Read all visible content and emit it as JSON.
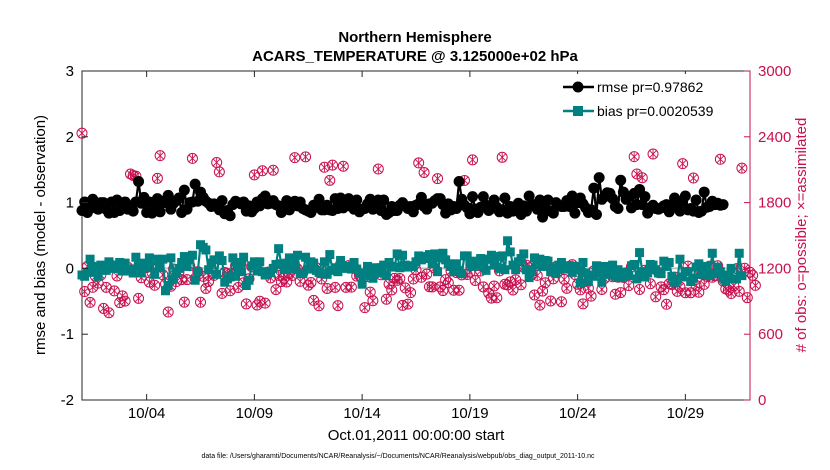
{
  "chart_data": {
    "type": "line",
    "title": "Northern Hemisphere",
    "subtitle": "ACARS_TEMPERATURE @ 3.125000e+02 hPa",
    "xlabel": "Oct.01,2011 00:00:00 start",
    "ylabel_left": "rmse and bias (model - observation)",
    "ylabel_right": "# of obs: o=possible; ×=assimilated",
    "ylim_left": [
      -2,
      3
    ],
    "ylim_right": [
      0,
      3000
    ],
    "left_ticks": [
      "-2",
      "-1",
      "0",
      "1",
      "2",
      "3"
    ],
    "right_ticks": [
      "0",
      "600",
      "1200",
      "1800",
      "2400",
      "3000"
    ],
    "x_range_days": [
      1.0,
      32.0
    ],
    "x_ticks": [
      {
        "day": 4,
        "label": "10/04"
      },
      {
        "day": 9,
        "label": "10/09"
      },
      {
        "day": 14,
        "label": "10/14"
      },
      {
        "day": 19,
        "label": "10/19"
      },
      {
        "day": 24,
        "label": "10/24"
      },
      {
        "day": 29,
        "label": "10/29"
      }
    ],
    "legend": [
      {
        "name": "rmse pr=0.97862",
        "color": "#000000",
        "marker": "circle"
      },
      {
        "name": "bias pr=0.0020539",
        "color": "#008080",
        "marker": "square"
      }
    ],
    "legend_location": "top-right",
    "x_step_days": 0.125,
    "series": [
      {
        "name": "rmse",
        "color": "#000000",
        "marker": "circle",
        "values": [
          0.88,
          1.01,
          0.85,
          0.97,
          1.05,
          0.92,
          0.9,
          1.0,
          1.0,
          0.9,
          0.84,
          1.01,
          0.85,
          1.04,
          0.88,
          0.94,
          1.01,
          0.9,
          0.95,
          0.87,
          1.01,
          1.32,
          0.99,
          1.08,
          0.85,
          1.01,
          0.84,
          0.94,
          1.06,
          0.86,
          1.02,
          1.0,
          1.11,
          0.9,
          0.99,
          1.03,
          1.07,
          0.85,
          1.19,
          0.9,
          1.0,
          1.01,
          1.28,
          1.02,
          1.16,
          1.08,
          1.02,
          0.99,
          0.94,
          0.98,
          0.94,
          0.89,
          1.03,
          0.83,
          0.88,
          0.8,
          0.97,
          1.02,
          1.0,
          0.98,
          1.01,
          0.87,
          0.95,
          0.86,
          0.91,
          1.01,
          0.95,
          1.06,
          1.1,
          0.98,
          0.99,
          1.03,
          0.97,
          0.95,
          0.85,
          0.91,
          1.03,
          0.89,
          0.97,
          1.02,
          0.95,
          1.01,
          0.91,
          0.89,
          0.87,
          0.85,
          0.96,
          0.93,
          1.05,
          0.89,
          0.89,
          0.96,
          0.89,
          0.88,
          1.06,
          0.91,
          1.07,
          0.92,
          0.95,
          1.06,
          0.94,
          0.9,
          1.04,
          0.86,
          0.9,
          0.91,
          0.98,
          1.05,
          0.9,
          0.94,
          1.04,
          0.88,
          1.04,
          0.82,
          0.85,
          0.94,
          0.88,
          0.88,
          0.96,
          1.0,
          0.95,
          0.91,
          0.94,
          0.86,
          0.96,
          0.98,
          1.08,
          0.94,
          0.9,
          0.98,
          0.99,
          1.03,
          1.06,
          1.06,
          0.97,
          0.84,
          0.98,
          0.89,
          0.94,
          0.91,
          1.32,
          1.05,
          0.96,
          0.92,
          0.83,
          1.09,
          0.9,
          0.85,
          0.93,
          1.09,
          0.96,
          0.88,
          0.91,
          1.04,
          0.93,
          0.86,
          0.89,
          1.07,
          0.84,
          0.94,
          0.87,
          0.88,
          0.99,
          0.82,
          0.95,
          0.87,
          1.1,
          0.97,
          0.97,
          0.9,
          1.04,
          0.78,
          0.93,
          1.04,
          0.87,
          0.84,
          1.0,
          0.96,
          0.94,
          0.94,
          1.03,
          0.94,
          1.1,
          0.84,
          1.0,
          1.07,
          0.98,
          0.92,
          0.85,
          0.89,
          1.22,
          0.82,
          1.38,
          1.05,
          1.09,
          1.15,
          1.14,
          1.06,
          0.94,
          0.91,
          1.34,
          1.16,
          1.05,
          1.09,
          0.92,
          1.14,
          0.97,
          1.2,
          0.97,
          1.09,
          0.84,
          0.92,
          0.96,
          0.91,
          0.9,
          0.92,
          0.95,
          0.97,
          0.86,
          0.97,
          1.07,
          0.95,
          0.87,
          1.02,
          1.1,
          0.89,
          0.91,
          0.87,
          1.04,
          0.85,
          0.87,
          1.16,
          0.93,
          0.94,
          1.02,
          0.97,
          0.99,
          0.96,
          0.97
        ]
      },
      {
        "name": "bias",
        "color": "#008080",
        "marker": "square",
        "values": [
          -0.1,
          -0.12,
          -0.06,
          0.14,
          0.03,
          -0.06,
          -0.12,
          0.05,
          0.02,
          -0.03,
          0.1,
          0.0,
          0.05,
          0.0,
          0.09,
          -0.04,
          0.08,
          -0.04,
          -0.01,
          -0.07,
          0.17,
          0.06,
          -0.07,
          0.08,
          0.01,
          0.16,
          0.11,
          -0.09,
          0.14,
          0.01,
          0.14,
          -0.34,
          -0.26,
          0.16,
          -0.16,
          -0.06,
          0.0,
          0.09,
          0.18,
          0.03,
          0.14,
          0.2,
          -0.18,
          -0.05,
          0.36,
          0.32,
          0.28,
          -0.02,
          0.08,
          0.13,
          -0.09,
          0.19,
          0.12,
          -0.21,
          -0.16,
          -0.13,
          0.16,
          -0.12,
          0.09,
          -0.05,
          0.17,
          -0.26,
          -0.18,
          0.04,
          0.1,
          -0.04,
          0.1,
          -0.05,
          -0.1,
          -0.08,
          -0.06,
          0.0,
          0.06,
          0.3,
          0.07,
          -0.02,
          0.08,
          0.16,
          -0.01,
          0.07,
          0.2,
          -0.08,
          -0.08,
          0.17,
          -0.01,
          0.1,
          0.08,
          -0.03,
          -0.06,
          -0.08,
          0.1,
          -0.09,
          0.21,
          -0.03,
          0.01,
          -0.05,
          0.12,
          0.0,
          0.02,
          0.03,
          -0.01,
          0.09,
          -0.01,
          -0.07,
          -0.24,
          -0.09,
          0.03,
          -0.11,
          -0.15,
          0.01,
          -0.07,
          0.01,
          0.05,
          -0.11,
          0.09,
          0.03,
          0.02,
          0.22,
          0.01,
          0.2,
          0.05,
          0.02,
          0.04,
          0.03,
          0.1,
          0.19,
          0.13,
          0.15,
          0.18,
          0.21,
          0.07,
          0.22,
          -0.05,
          0.16,
          0.23,
          0.13,
          0.07,
          0.03,
          -0.05,
          0.07,
          -0.03,
          -0.08,
          0.19,
          0.19,
          0.07,
          0.03,
          0.11,
          0.05,
          0.15,
          0.03,
          -0.03,
          0.14,
          0.2,
          0.05,
          0.18,
          0.0,
          0.19,
          -0.02,
          0.42,
          0.25,
          0.05,
          -0.02,
          0.1,
          0.15,
          0.22,
          -0.02,
          -0.14,
          -0.05,
          0.16,
          0.05,
          0.14,
          0.03,
          0.12,
          0.11,
          -0.05,
          0.01,
          -0.08,
          0.05,
          0.09,
          -0.01,
          -0.01,
          0.04,
          -0.06,
          0.03,
          -0.02,
          -0.22,
          0.09,
          -0.07,
          -0.2,
          -0.1,
          -0.12,
          0.04,
          -0.06,
          -0.21,
          0.03,
          -0.09,
          -0.06,
          0.05,
          -0.12,
          -0.02,
          -0.14,
          -0.12,
          -0.06,
          -0.11,
          0.04,
          0.06,
          -0.16,
          0.24,
          -0.05,
          -0.13,
          -0.07,
          0.06,
          0.05,
          -0.02,
          -0.07,
          -0.08,
          0.11,
          0.03,
          0.09,
          -0.12,
          -0.21,
          -0.18,
          0.14,
          -0.13,
          -0.05,
          -0.05,
          -0.2,
          -0.15,
          0.02,
          0.07,
          -0.09,
          -0.02,
          0.03,
          -0.11,
          0.23,
          -0.08,
          0.02,
          -0.05,
          -0.15,
          -0.19,
          -0.1,
          0.0,
          -0.16,
          -0.16,
          0.23,
          -0.11
        ]
      },
      {
        "name": "obs possible",
        "axis": "right",
        "color": "#c8104f",
        "marker": "circle-open",
        "values": [
          2433,
          989,
          1218,
          890,
          1028,
          1127,
          1066,
          1140,
          835,
          1027,
          796,
          1228,
          995,
          1131,
          888,
          950,
          902,
          1210,
          2061,
          2047,
          2041,
          927,
          1115,
          1217,
          1208,
          1075,
          1161,
          1046,
          2021,
          2228,
          1142,
          1059,
          802,
          1037,
          1194,
          1079,
          1167,
          1098,
          892,
          1098,
          1224,
          2203,
          1109,
          1171,
          891,
          1127,
          1017,
          1081,
          1177,
          1136,
          2166,
          2080,
          972,
          1163,
          1154,
          996,
          1149,
          1226,
          1026,
          1241,
          1069,
          876,
          1106,
          1215,
          2053,
          866,
          900,
          2090,
          883,
          1166,
          1113,
          2095,
          1007,
          1136,
          1080,
          1111,
          1076,
          1154,
          1135,
          2210,
          1196,
          1082,
          1159,
          2217,
          1047,
          1071,
          908,
          1207,
          859,
          1103,
          2122,
          1017,
          2003,
          2142,
          1027,
          861,
          1239,
          2132,
          1027,
          1225,
          1029,
          1211,
          1130,
          1136,
          1120,
          842,
          1125,
          984,
          905,
          1179,
          2106,
          1142,
          1179,
          919,
          1058,
          1003,
          1109,
          1091,
          1108,
          863,
          1022,
          874,
          979,
          1103,
          1185,
          2162,
          1119,
          2075,
          1148,
          1033,
          1031,
          1204,
          2019,
          1032,
          998,
          1098,
          1070,
          1177,
          1001,
          1162,
          1001,
          1141,
          2002,
          1144,
          1165,
          2190,
          1090,
          1225,
          1176,
          1031,
          1222,
          975,
          929,
          1040,
          932,
          1177,
          2213,
          1055,
          1049,
          1077,
          1003,
          1097,
          1221,
          1051,
          1210,
          1230,
          1206,
          1143,
          958,
          1136,
          865,
          993,
          1069,
          1225,
          903,
          1105,
          1215,
          1175,
          896,
          1100,
          1018,
          1219,
          1234,
          1144,
          1055,
          1004,
          877,
          1082,
          1020,
          947,
          1177,
          1144,
          1181,
          1008,
          1108,
          1167,
          1155,
          1124,
          964,
          1119,
          979,
          1118,
          1159,
          1043,
          1216,
          2219,
          2061,
          1008,
          2027,
          1183,
          1176,
          1060,
          2243,
          941,
          1164,
          1032,
          1006,
          873,
          1060,
          1052,
          1120,
          991,
          1032,
          2155,
          978,
          1221,
          978,
          2024,
          1045,
          983,
          1149,
          1054,
          1127,
          1221,
          1119,
          1133,
          1224,
          2195,
          1085,
          1013,
          1002,
          971,
          1042,
          1198,
          991,
          2114,
          1201,
          933,
          1165,
          1137,
          1045
        ]
      },
      {
        "name": "obs assimilated",
        "axis": "right",
        "color": "#c8104f",
        "marker": "x",
        "values": [
          2433,
          989,
          1218,
          890,
          1028,
          1127,
          1066,
          1140,
          835,
          1027,
          796,
          1228,
          995,
          1131,
          888,
          950,
          902,
          1210,
          2061,
          2047,
          2041,
          927,
          1115,
          1217,
          1208,
          1075,
          1161,
          1046,
          2021,
          2228,
          1142,
          1059,
          802,
          1037,
          1194,
          1079,
          1167,
          1098,
          892,
          1098,
          1224,
          2203,
          1109,
          1171,
          891,
          1127,
          1017,
          1081,
          1177,
          1136,
          2166,
          2080,
          972,
          1163,
          1154,
          996,
          1149,
          1226,
          1026,
          1241,
          1069,
          876,
          1106,
          1215,
          2053,
          866,
          900,
          2090,
          883,
          1166,
          1113,
          2095,
          1007,
          1136,
          1080,
          1111,
          1076,
          1154,
          1135,
          2210,
          1196,
          1082,
          1159,
          2217,
          1047,
          1071,
          908,
          1207,
          859,
          1103,
          2122,
          1017,
          2003,
          2142,
          1027,
          861,
          1239,
          2132,
          1027,
          1225,
          1029,
          1211,
          1130,
          1136,
          1120,
          842,
          1125,
          984,
          905,
          1179,
          2106,
          1142,
          1179,
          919,
          1058,
          1003,
          1109,
          1091,
          1108,
          863,
          1022,
          874,
          979,
          1103,
          1185,
          2162,
          1119,
          2075,
          1148,
          1033,
          1031,
          1204,
          2019,
          1032,
          998,
          1098,
          1070,
          1177,
          1001,
          1162,
          1001,
          1141,
          2002,
          1144,
          1165,
          2190,
          1090,
          1225,
          1176,
          1031,
          1222,
          975,
          929,
          1040,
          932,
          1177,
          2213,
          1055,
          1049,
          1077,
          1003,
          1097,
          1221,
          1051,
          1210,
          1230,
          1206,
          1143,
          958,
          1136,
          865,
          993,
          1069,
          1225,
          903,
          1105,
          1215,
          1175,
          896,
          1100,
          1018,
          1219,
          1234,
          1144,
          1055,
          1004,
          877,
          1082,
          1020,
          947,
          1177,
          1144,
          1181,
          1008,
          1108,
          1167,
          1155,
          1124,
          964,
          1119,
          979,
          1118,
          1159,
          1043,
          1216,
          2219,
          2061,
          1008,
          2027,
          1183,
          1176,
          1060,
          2243,
          941,
          1164,
          1032,
          1006,
          873,
          1060,
          1052,
          1120,
          991,
          1032,
          2155,
          978,
          1221,
          978,
          2024,
          1045,
          983,
          1149,
          1054,
          1127,
          1221,
          1119,
          1133,
          1224,
          2195,
          1085,
          1013,
          1002,
          971,
          1042,
          1198,
          991,
          2114,
          1201,
          933,
          1165,
          1137,
          1045
        ]
      }
    ],
    "footnote": "data file: /Users/gharamti/Documents/NCAR/Reanalysis/~/Documents/NCAR/Reanalysis/webpub/obs_diag_output_2011-10.nc"
  }
}
